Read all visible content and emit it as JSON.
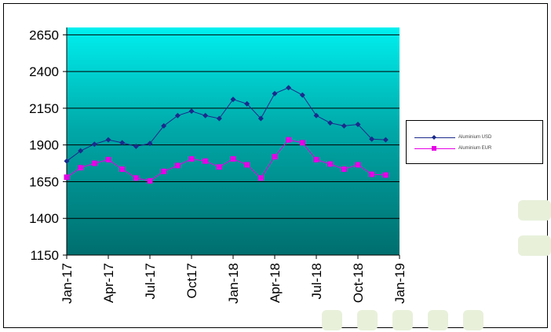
{
  "chart_data": {
    "type": "line",
    "title": "",
    "xlabel": "",
    "ylabel": "",
    "ylim": [
      1150,
      2700
    ],
    "yticks": [
      1150,
      1400,
      1650,
      1900,
      2150,
      2400,
      2650
    ],
    "x_tick_labels": [
      "Jan-17",
      "Apr-17",
      "Jul-17",
      "Oct17",
      "Jan-18",
      "Apr-18",
      "Jul-18",
      "Oct-18",
      "Jan-19"
    ],
    "x_tick_months": [
      0,
      3,
      6,
      9,
      12,
      15,
      18,
      21,
      24
    ],
    "x_range_months": [
      0,
      24
    ],
    "x_months": [
      0,
      1,
      2,
      3,
      4,
      5,
      6,
      7,
      8,
      9,
      10,
      11,
      12,
      13,
      14,
      15,
      16,
      17,
      18,
      19,
      20,
      21,
      22,
      23
    ],
    "grid": true,
    "legend_position": "right",
    "series": [
      {
        "name": "Aluminium USD",
        "color": "#1a2a8c",
        "marker": "diamond",
        "values": [
          1790,
          1860,
          1905,
          1935,
          1915,
          1890,
          1910,
          2030,
          2100,
          2130,
          2100,
          2080,
          2210,
          2180,
          2080,
          2250,
          2290,
          2240,
          2100,
          2050,
          2030,
          2040,
          1940,
          1935
        ]
      },
      {
        "name": "Aluminium EUR",
        "color": "#e600e6",
        "marker": "square",
        "values": [
          1680,
          1745,
          1775,
          1800,
          1735,
          1675,
          1655,
          1720,
          1760,
          1805,
          1790,
          1750,
          1805,
          1765,
          1675,
          1820,
          1935,
          1915,
          1800,
          1770,
          1735,
          1765,
          1700,
          1695
        ]
      }
    ]
  }
}
